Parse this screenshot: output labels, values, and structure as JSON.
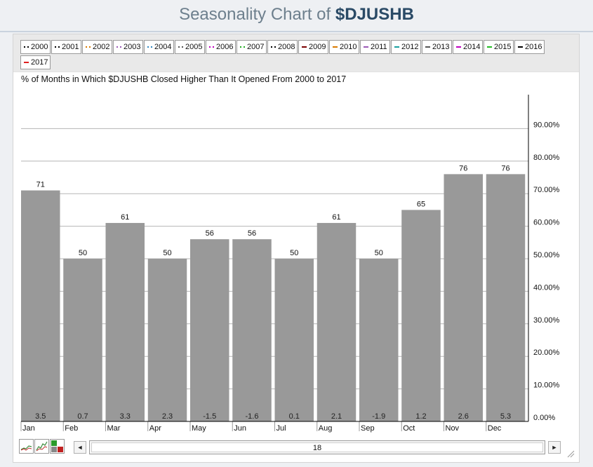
{
  "page": {
    "title_prefix": "Seasonality Chart of",
    "title_symbol": "$DJUSHB"
  },
  "legend": [
    {
      "label": "2000",
      "color": "#000000",
      "style": "dotted"
    },
    {
      "label": "2001",
      "color": "#000000",
      "style": "dotted"
    },
    {
      "label": "2002",
      "color": "#d97a00",
      "style": "dotted"
    },
    {
      "label": "2003",
      "color": "#9b59b6",
      "style": "dotted"
    },
    {
      "label": "2004",
      "color": "#2e86c1",
      "style": "dotted"
    },
    {
      "label": "2005",
      "color": "#555555",
      "style": "dotted"
    },
    {
      "label": "2006",
      "color": "#c000c0",
      "style": "dotted"
    },
    {
      "label": "2007",
      "color": "#22aa22",
      "style": "dotted"
    },
    {
      "label": "2008",
      "color": "#000000",
      "style": "dotted"
    },
    {
      "label": "2009",
      "color": "#7a0000",
      "style": "solid"
    },
    {
      "label": "2010",
      "color": "#d97a00",
      "style": "solid"
    },
    {
      "label": "2011",
      "color": "#9b59b6",
      "style": "solid"
    },
    {
      "label": "2012",
      "color": "#1aa0a0",
      "style": "solid"
    },
    {
      "label": "2013",
      "color": "#555555",
      "style": "solid"
    },
    {
      "label": "2014",
      "color": "#c000c0",
      "style": "solid"
    },
    {
      "label": "2015",
      "color": "#22bb22",
      "style": "solid"
    },
    {
      "label": "2016",
      "color": "#000000",
      "style": "solid"
    },
    {
      "label": "2017",
      "color": "#e02020",
      "style": "solid"
    }
  ],
  "scroll": {
    "value": "18",
    "left_arrow": "◄",
    "right_arrow": "►"
  },
  "chart_data": {
    "type": "bar",
    "title": "% of Months in Which $DJUSHB Closed Higher Than It Opened From 2000 to 2017",
    "categories": [
      "Jan",
      "Feb",
      "Mar",
      "Apr",
      "May",
      "Jun",
      "Jul",
      "Aug",
      "Sep",
      "Oct",
      "Nov",
      "Dec"
    ],
    "values": [
      71,
      50,
      61,
      50,
      56,
      56,
      50,
      61,
      50,
      65,
      76,
      76
    ],
    "avg_change_labels": [
      "3.5",
      "0.7",
      "3.3",
      "2.3",
      "-1.5",
      "-1.6",
      "0.1",
      "2.1",
      "-1.9",
      "1.2",
      "2.6",
      "5.3"
    ],
    "y_ticks": [
      "0.00%",
      "10.00%",
      "20.00%",
      "30.00%",
      "40.00%",
      "50.00%",
      "60.00%",
      "70.00%",
      "80.00%",
      "90.00%"
    ],
    "ylim": [
      0,
      100
    ],
    "bar_color": "#999999",
    "grid_color": "#b5b5b5",
    "grid": true,
    "y_axis_side": "right"
  }
}
